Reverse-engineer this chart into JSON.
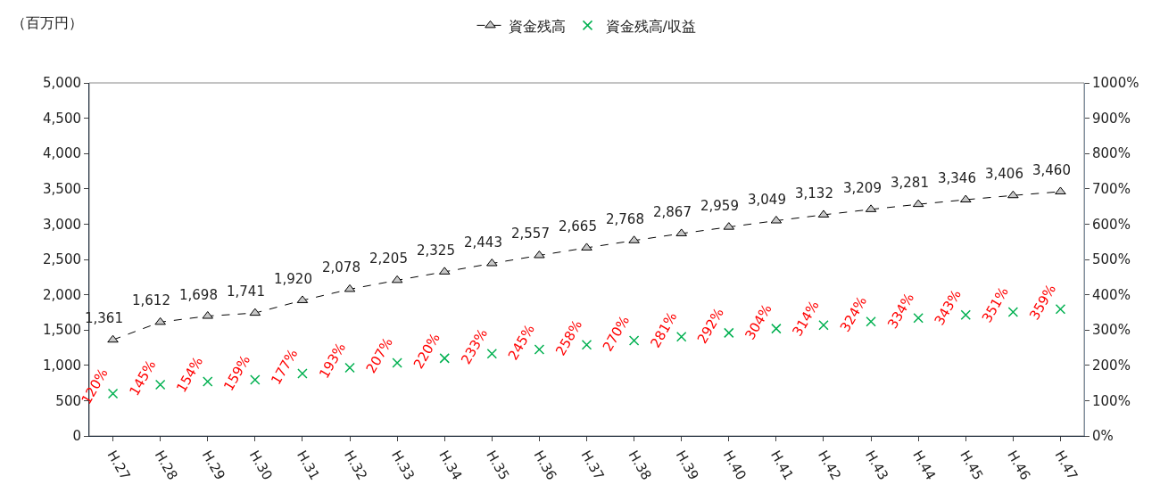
{
  "chart_data": {
    "type": "line",
    "ylabel": "（百万円）",
    "categories": [
      "H.27",
      "H.28",
      "H.29",
      "H.30",
      "H.31",
      "H.32",
      "H.33",
      "H.34",
      "H.35",
      "H.36",
      "H.37",
      "H.38",
      "H.39",
      "H.40",
      "H.41",
      "H.42",
      "H.43",
      "H.44",
      "H.45",
      "H.46",
      "H.47"
    ],
    "series": [
      {
        "name": "資金残高",
        "color": "#000000",
        "marker": "triangle",
        "line_style": "dashed",
        "values": [
          1361,
          1612,
          1698,
          1741,
          1920,
          2078,
          2205,
          2325,
          2443,
          2557,
          2665,
          2768,
          2867,
          2959,
          3049,
          3132,
          3209,
          3281,
          3346,
          3406,
          3460
        ],
        "value_labels": [
          "1,361",
          "1,612",
          "1,698",
          "1,741",
          "1,920",
          "2,078",
          "2,205",
          "2,325",
          "2,443",
          "2,557",
          "2,665",
          "2,768",
          "2,867",
          "2,959",
          "3,049",
          "3,132",
          "3,209",
          "3,281",
          "3,346",
          "3,406",
          "3,460"
        ]
      },
      {
        "name": "資金残高/収益",
        "type": "scatter",
        "axis": "y2",
        "color": "#00b050",
        "marker": "cross",
        "values": [
          120,
          145,
          154,
          159,
          177,
          193,
          207,
          220,
          233,
          245,
          258,
          270,
          281,
          292,
          304,
          314,
          324,
          334,
          343,
          351,
          359
        ],
        "value_labels": [
          "120%",
          "145%",
          "154%",
          "159%",
          "177%",
          "193%",
          "207%",
          "220%",
          "233%",
          "245%",
          "258%",
          "270%",
          "281%",
          "292%",
          "304%",
          "314%",
          "324%",
          "334%",
          "343%",
          "351%",
          "359%"
        ]
      }
    ],
    "ylim": [
      0,
      5000
    ],
    "yticks": [
      {
        "value": 0,
        "label": "0"
      },
      {
        "value": 500,
        "label": "500"
      },
      {
        "value": 1000,
        "label": "1,000"
      },
      {
        "value": 1500,
        "label": "1,500"
      },
      {
        "value": 2000,
        "label": "2,000"
      },
      {
        "value": 2500,
        "label": "2,500"
      },
      {
        "value": 3000,
        "label": "3,000"
      },
      {
        "value": 3500,
        "label": "3,500"
      },
      {
        "value": 4000,
        "label": "4,000"
      },
      {
        "value": 4500,
        "label": "4,500"
      },
      {
        "value": 5000,
        "label": "5,000"
      }
    ],
    "y2lim": [
      0,
      1000
    ],
    "y2ticks": [
      {
        "value": 0,
        "label": "0%"
      },
      {
        "value": 100,
        "label": "100%"
      },
      {
        "value": 200,
        "label": "200%"
      },
      {
        "value": 300,
        "label": "300%"
      },
      {
        "value": 400,
        "label": "400%"
      },
      {
        "value": 500,
        "label": "500%"
      },
      {
        "value": 600,
        "label": "600%"
      },
      {
        "value": 700,
        "label": "700%"
      },
      {
        "value": 800,
        "label": "800%"
      },
      {
        "value": 900,
        "label": "900%"
      },
      {
        "value": 1000,
        "label": "1000%"
      }
    ],
    "grid": false,
    "legend": "top"
  }
}
